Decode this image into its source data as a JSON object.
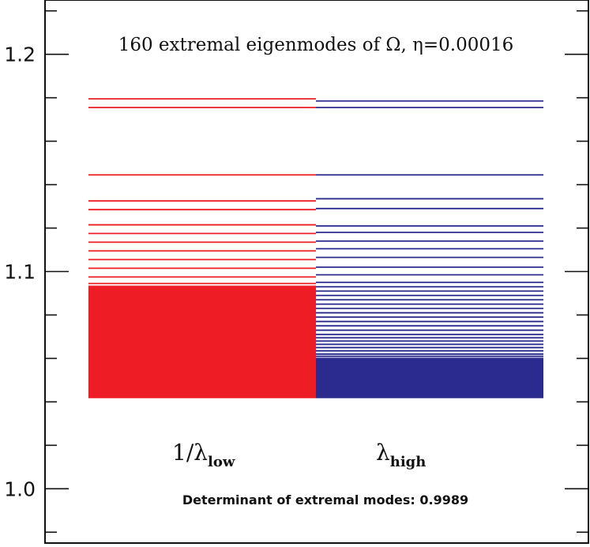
{
  "chart_data": {
    "type": "eigenvalue-spectrum",
    "title": "160 extremal eigenmodes of Ω, η=0.00016",
    "ylim": [
      0.975,
      1.225
    ],
    "y_ticks": [
      1.0,
      1.1,
      1.2
    ],
    "y_tick_labels": [
      "1.0",
      "1.1",
      "1.2"
    ],
    "y_minor_step": 0.02,
    "grid": false,
    "series": [
      {
        "name": "1/λ",
        "name_sub": "low",
        "color": "#ee1c25",
        "values": [
          1.1795,
          1.1755,
          1.1445,
          1.1325,
          1.1285,
          1.1215,
          1.1175,
          1.1135,
          1.1095,
          1.1055,
          1.1015,
          1.0975,
          1.0945,
          1.093,
          1.0915,
          1.09,
          1.088,
          1.086,
          1.084,
          1.082,
          1.08,
          1.078,
          1.076,
          1.074,
          1.072,
          1.07,
          1.069,
          1.068,
          1.067,
          1.066,
          1.065,
          1.064,
          1.063,
          1.062,
          1.061,
          1.06,
          1.059,
          1.058,
          1.057,
          1.056,
          1.055,
          1.054,
          1.053,
          1.052,
          1.051,
          1.05,
          1.049,
          1.048,
          1.047,
          1.046,
          1.045,
          1.044,
          1.043,
          1.042
        ],
        "fill_band": [
          1.042,
          1.0935
        ]
      },
      {
        "name": "λ",
        "name_sub": "high",
        "color": "#2b2b8f",
        "values": [
          1.1785,
          1.1755,
          1.1445,
          1.1335,
          1.129,
          1.121,
          1.118,
          1.114,
          1.1105,
          1.1065,
          1.102,
          1.0985,
          1.095,
          1.093,
          1.091,
          1.089,
          1.087,
          1.085,
          1.083,
          1.081,
          1.079,
          1.077,
          1.075,
          1.073,
          1.071,
          1.0695,
          1.068,
          1.0665,
          1.065,
          1.0635,
          1.062,
          1.061,
          1.06,
          1.059,
          1.058,
          1.057,
          1.056,
          1.055,
          1.054,
          1.053,
          1.052,
          1.051,
          1.05,
          1.049,
          1.048,
          1.047,
          1.046,
          1.045,
          1.044,
          1.043,
          1.042
        ],
        "fill_band": [
          1.042,
          1.06
        ]
      }
    ],
    "annotation": "Determinant of extremal modes: 0.9989"
  }
}
